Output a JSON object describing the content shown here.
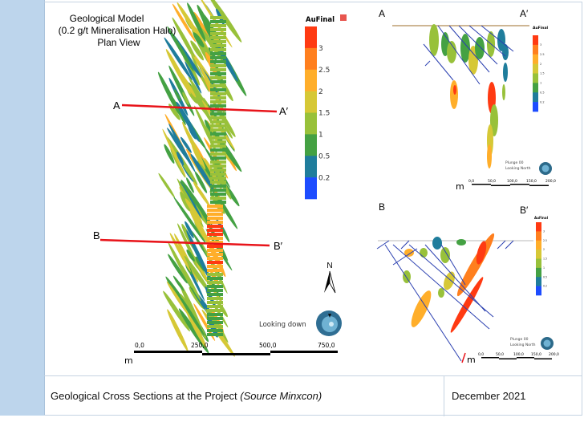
{
  "plan_view": {
    "title_lines": [
      "Geological Model",
      "(0.2 g/t Mineralisation Halo)",
      "Plan View"
    ],
    "section_a": {
      "start": "A",
      "end": "A′"
    },
    "section_b": {
      "start": "B",
      "end": "B′"
    },
    "north_label": "N",
    "view_label": "Looking down",
    "scale": {
      "unit": "m",
      "ticks": [
        "0,0",
        "250,0",
        "500,0",
        "750,0"
      ]
    }
  },
  "legend": {
    "title": "AuFinal",
    "labels": [
      "3",
      "2.5",
      "2",
      "1.5",
      "1",
      "0.5",
      "0.2"
    ],
    "colors": [
      "#ff3a12",
      "#ff7f1e",
      "#ffae2a",
      "#d6c836",
      "#98c13a",
      "#44a143",
      "#1f7d9c",
      "#1d4cff"
    ]
  },
  "section_a_view": {
    "start": "A",
    "end": "A′",
    "legend_title": "AuFinal",
    "plunge": "Plunge 00",
    "looking": "Looking North",
    "scale": {
      "unit": "m",
      "ticks": [
        "0,0",
        "50,0",
        "100,0",
        "150,0",
        "200,0"
      ]
    }
  },
  "section_b_view": {
    "start": "B",
    "end": "B′",
    "legend_title": "AuFinal",
    "plunge": "Plunge 00",
    "looking": "Looking North",
    "scale": {
      "unit": "m",
      "ticks": [
        "0,0",
        "50,0",
        "100,0",
        "150,0",
        "200,0"
      ]
    }
  },
  "caption": {
    "text": "Geological Cross Sections at the Project ",
    "source": "(Source Minxcon)",
    "date": "December 2021"
  }
}
